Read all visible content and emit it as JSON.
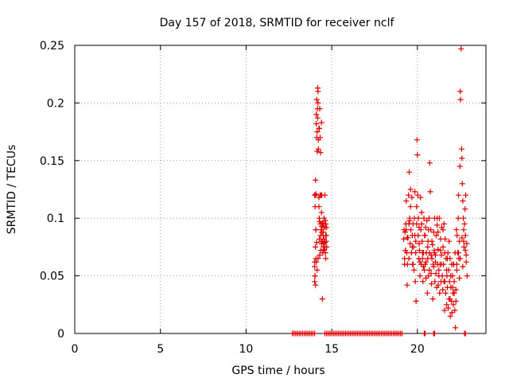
{
  "chart_data": {
    "type": "scatter",
    "title": "Day 157 of 2018, SRMTID for receiver nclf",
    "xlabel": "GPS time / hours",
    "ylabel": "SRMTID / TECUs",
    "xlim": [
      0,
      24
    ],
    "ylim": [
      0,
      0.25
    ],
    "x_ticks": [
      0,
      5,
      10,
      15,
      20
    ],
    "x_tick_labels": [
      "0",
      "5",
      "10",
      "15",
      "20"
    ],
    "y_ticks": [
      0,
      0.05,
      0.1,
      0.15,
      0.2,
      0.25
    ],
    "y_tick_labels": [
      "0",
      "0.05",
      "0.1",
      "0.15",
      "0.2",
      "0.25"
    ],
    "grid": true,
    "marker": "+",
    "color": "#e00000",
    "series": [
      {
        "x": [
          14.0,
          14.0,
          14.0,
          14.02,
          14.03,
          14.05,
          14.05,
          14.07,
          14.08,
          14.1,
          14.1,
          14.12,
          14.12,
          14.15,
          14.15,
          14.17,
          14.18,
          14.2,
          14.2,
          14.22,
          14.25,
          14.25,
          14.27,
          14.28,
          14.3,
          14.3,
          14.32,
          14.33,
          14.35,
          14.35,
          14.37,
          14.38,
          14.4,
          14.4,
          14.42,
          14.42,
          14.45,
          14.45,
          14.47,
          14.48,
          14.5,
          14.5,
          14.52,
          14.53,
          14.55,
          14.55,
          14.6,
          14.6,
          14.62,
          14.63,
          14.65,
          14.65,
          14.68,
          14.7,
          14.0,
          14.02,
          14.05,
          14.08,
          14.12,
          14.18,
          14.22,
          14.28,
          14.32,
          14.38,
          14.42,
          14.5,
          14.55,
          14.6,
          14.65,
          14.7,
          14.03,
          14.07,
          14.1,
          14.15,
          14.2,
          14.25,
          14.3,
          14.35,
          14.4,
          14.45,
          14.5,
          14.55,
          14.62,
          14.68,
          19.2,
          19.22,
          19.25,
          19.28,
          19.3,
          19.33,
          19.35,
          19.38,
          19.4,
          19.42,
          19.45,
          19.48,
          19.5,
          19.52,
          19.55,
          19.58,
          19.6,
          19.62,
          19.65,
          19.68,
          19.7,
          19.72,
          19.75,
          19.78,
          19.8,
          19.82,
          19.85,
          19.88,
          19.9,
          19.92,
          19.95,
          19.98,
          20.0,
          20.02,
          20.05,
          20.08,
          20.1,
          20.12,
          20.15,
          20.18,
          20.2,
          20.22,
          20.25,
          20.28,
          20.3,
          20.32,
          20.35,
          20.38,
          20.4,
          20.42,
          20.45,
          20.48,
          20.5,
          20.52,
          20.55,
          20.58,
          20.6,
          20.62,
          20.65,
          20.68,
          20.7,
          20.72,
          20.75,
          20.78,
          20.8,
          20.82,
          20.85,
          20.88,
          20.9,
          20.92,
          20.95,
          20.98,
          21.0,
          21.02,
          21.05,
          21.08,
          21.1,
          21.12,
          21.15,
          21.18,
          21.2,
          21.22,
          21.25,
          21.28,
          21.3,
          21.32,
          21.35,
          21.38,
          21.4,
          21.42,
          21.45,
          21.48,
          21.5,
          21.52,
          21.55,
          21.58,
          21.6,
          21.62,
          21.65,
          21.68,
          21.7,
          21.72,
          21.75,
          21.78,
          21.8,
          21.82,
          21.85,
          21.88,
          21.9,
          21.92,
          21.95,
          21.98,
          22.0,
          22.02,
          22.05,
          22.08,
          22.1,
          22.12,
          22.15,
          22.18,
          22.2,
          22.22,
          22.25,
          22.28,
          22.3,
          22.32,
          22.35,
          22.38,
          22.4,
          22.42,
          22.45,
          22.48,
          22.5,
          22.52,
          22.55,
          22.58,
          22.6,
          22.62,
          22.65,
          22.68,
          22.7,
          22.72,
          22.75,
          22.78,
          22.8,
          22.82,
          22.85,
          22.88,
          22.9,
          19.25,
          19.3,
          19.35,
          19.4,
          19.5,
          19.55,
          19.6,
          19.7,
          19.75,
          19.85,
          19.9,
          19.95,
          20.05,
          20.1,
          20.15,
          20.25,
          20.3,
          20.35,
          20.45,
          20.5,
          20.6,
          20.65,
          20.7,
          20.8,
          20.85,
          20.95,
          21.0,
          21.05,
          21.15,
          21.2,
          21.25,
          21.35,
          21.4,
          21.5,
          21.55,
          21.6,
          21.7,
          21.75,
          21.85,
          21.9,
          21.95,
          22.05,
          22.1,
          22.15,
          22.25,
          22.3,
          22.4,
          22.45,
          22.5,
          22.6,
          22.65,
          22.7,
          22.8,
          22.85,
          12.7,
          12.8,
          12.9,
          13.0,
          13.1,
          13.2,
          13.3,
          13.4,
          13.5,
          13.6,
          13.7,
          13.8,
          13.9,
          14.0,
          14.6,
          14.7,
          14.8,
          14.9,
          15.0,
          15.1,
          15.2,
          15.3,
          15.4,
          15.5,
          15.6,
          15.7,
          15.8,
          15.9,
          16.0,
          16.1,
          16.2,
          16.3,
          16.4,
          16.5,
          16.6,
          16.7,
          16.8,
          16.9,
          17.0,
          17.1,
          17.2,
          17.3,
          17.4,
          17.5,
          17.6,
          17.7,
          17.8,
          17.9,
          18.0,
          18.1,
          18.2,
          18.3,
          18.4,
          18.5,
          18.6,
          18.7,
          18.8,
          18.9,
          19.0,
          19.1,
          20.4,
          20.45,
          20.95,
          21.0,
          22.75,
          22.8
        ],
        "y": [
          0.045,
          0.058,
          0.12,
          0.05,
          0.12,
          0.133,
          0.075,
          0.09,
          0.121,
          0.19,
          0.182,
          0.203,
          0.17,
          0.158,
          0.175,
          0.195,
          0.213,
          0.21,
          0.2,
          0.16,
          0.118,
          0.11,
          0.1,
          0.082,
          0.068,
          0.097,
          0.12,
          0.095,
          0.072,
          0.085,
          0.09,
          0.08,
          0.105,
          0.078,
          0.093,
          0.12,
          0.03,
          0.08,
          0.095,
          0.07,
          0.085,
          0.078,
          0.075,
          0.092,
          0.082,
          0.1,
          0.12,
          0.075,
          0.098,
          0.07,
          0.085,
          0.095,
          0.08,
          0.075,
          0.062,
          0.05,
          0.042,
          0.065,
          0.079,
          0.187,
          0.168,
          0.178,
          0.17,
          0.12,
          0.088,
          0.095,
          0.072,
          0.079,
          0.065,
          0.092,
          0.11,
          0.09,
          0.062,
          0.055,
          0.065,
          0.178,
          0.195,
          0.157,
          0.183,
          0.096,
          0.088,
          0.073,
          0.092,
          0.085,
          0.082,
          0.09,
          0.065,
          0.088,
          0.072,
          0.095,
          0.115,
          0.07,
          0.042,
          0.06,
          0.083,
          0.12,
          0.095,
          0.14,
          0.1,
          0.078,
          0.125,
          0.09,
          0.07,
          0.118,
          0.085,
          0.06,
          0.095,
          0.075,
          0.055,
          0.1,
          0.123,
          0.045,
          0.08,
          0.028,
          0.11,
          0.168,
          0.155,
          0.12,
          0.085,
          0.065,
          0.092,
          0.072,
          0.05,
          0.118,
          0.09,
          0.06,
          0.105,
          0.08,
          0.065,
          0.045,
          0.07,
          0.1,
          0.055,
          0.085,
          0.06,
          0.092,
          0.048,
          0.07,
          0.098,
          0.035,
          0.065,
          0.08,
          0.05,
          0.1,
          0.07,
          0.148,
          0.123,
          0.09,
          0.052,
          0.043,
          0.065,
          0.077,
          0.03,
          0.06,
          0.088,
          0.072,
          0.1,
          0.045,
          0.068,
          0.052,
          0.085,
          0.04,
          0.094,
          0.06,
          0.073,
          0.042,
          0.055,
          0.1,
          0.035,
          0.06,
          0.082,
          0.045,
          0.068,
          0.092,
          0.05,
          0.038,
          0.075,
          0.06,
          0.095,
          0.02,
          0.045,
          0.082,
          0.035,
          0.065,
          0.025,
          0.05,
          0.04,
          0.07,
          0.022,
          0.055,
          0.03,
          0.045,
          0.065,
          0.015,
          0.04,
          0.028,
          0.06,
          0.018,
          0.05,
          0.035,
          0.025,
          0.06,
          0.045,
          0.02,
          0.07,
          0.005,
          0.038,
          0.09,
          0.06,
          0.085,
          0.07,
          0.1,
          0.12,
          0.065,
          0.08,
          0.145,
          0.21,
          0.203,
          0.247,
          0.16,
          0.152,
          0.13,
          0.115,
          0.1,
          0.09,
          0.075,
          0.095,
          0.108,
          0.085,
          0.12,
          0.068,
          0.078,
          0.05,
          0.06,
          0.072,
          0.09,
          0.083,
          0.065,
          0.098,
          0.11,
          0.075,
          0.06,
          0.085,
          0.07,
          0.095,
          0.1,
          0.078,
          0.062,
          0.095,
          0.07,
          0.058,
          0.085,
          0.062,
          0.075,
          0.09,
          0.055,
          0.068,
          0.08,
          0.058,
          0.07,
          0.062,
          0.1,
          0.088,
          0.05,
          0.072,
          0.06,
          0.09,
          0.045,
          0.07,
          0.055,
          0.065,
          0.08,
          0.03,
          0.05,
          0.04,
          0.06,
          0.035,
          0.028,
          0.055,
          0.07,
          0.048,
          0.065,
          0.083,
          0.058,
          0.08,
          0.072,
          0.062,
          0,
          0,
          0,
          0,
          0,
          0,
          0,
          0,
          0,
          0,
          0,
          0,
          0,
          0,
          0,
          0,
          0,
          0,
          0,
          0,
          0,
          0,
          0,
          0,
          0,
          0,
          0,
          0,
          0,
          0,
          0,
          0,
          0,
          0,
          0,
          0,
          0,
          0,
          0,
          0,
          0,
          0,
          0,
          0,
          0,
          0,
          0,
          0,
          0,
          0,
          0,
          0,
          0,
          0,
          0,
          0,
          0,
          0,
          0,
          0,
          0,
          0,
          0,
          0,
          0,
          0
        ]
      }
    ]
  }
}
